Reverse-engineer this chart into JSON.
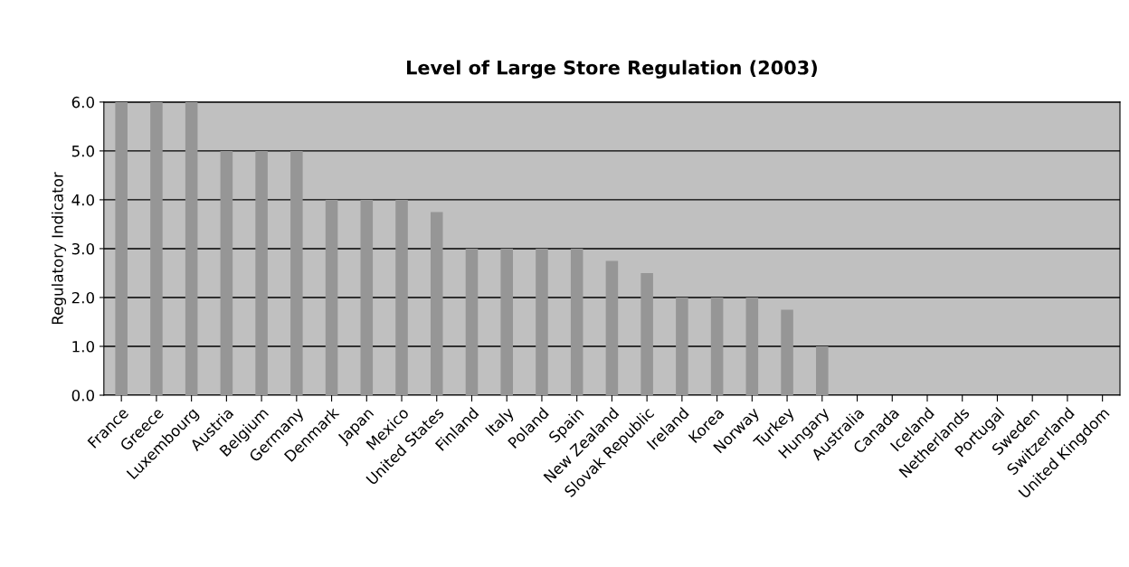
{
  "chart_data": {
    "type": "bar",
    "title": "Level of Large Store Regulation (2003)",
    "ylabel": "Regulatory Indicator",
    "categories": [
      "France",
      "Greece",
      "Luxembourg",
      "Austria",
      "Belgium",
      "Germany",
      "Denmark",
      "Japan",
      "Mexico",
      "United States",
      "Finland",
      "Italy",
      "Poland",
      "Spain",
      "New Zealand",
      "Slovak Republic",
      "Ireland",
      "Korea",
      "Norway",
      "Turkey",
      "Hungary",
      "Australia",
      "Canada",
      "Iceland",
      "Netherlands",
      "Portugal",
      "Sweden",
      "Switzerland",
      "United Kingdom"
    ],
    "values": [
      6,
      6,
      6,
      5,
      5,
      5,
      4,
      4,
      4,
      3.75,
      3,
      3,
      3,
      3,
      2.75,
      2.5,
      2,
      2,
      2,
      1.75,
      1,
      0,
      0,
      0,
      0,
      0,
      0,
      0,
      0
    ],
    "color": "#969696",
    "ylim": [
      0,
      6
    ],
    "yticks": [
      {
        "value": 0,
        "label": "0.0"
      },
      {
        "value": 1,
        "label": "1.0"
      },
      {
        "value": 2,
        "label": "2.0"
      },
      {
        "value": 3,
        "label": "3.0"
      },
      {
        "value": 4,
        "label": "4.0"
      },
      {
        "value": 5,
        "label": "5.0"
      },
      {
        "value": 6,
        "label": "6.0"
      }
    ],
    "grid": "y"
  }
}
